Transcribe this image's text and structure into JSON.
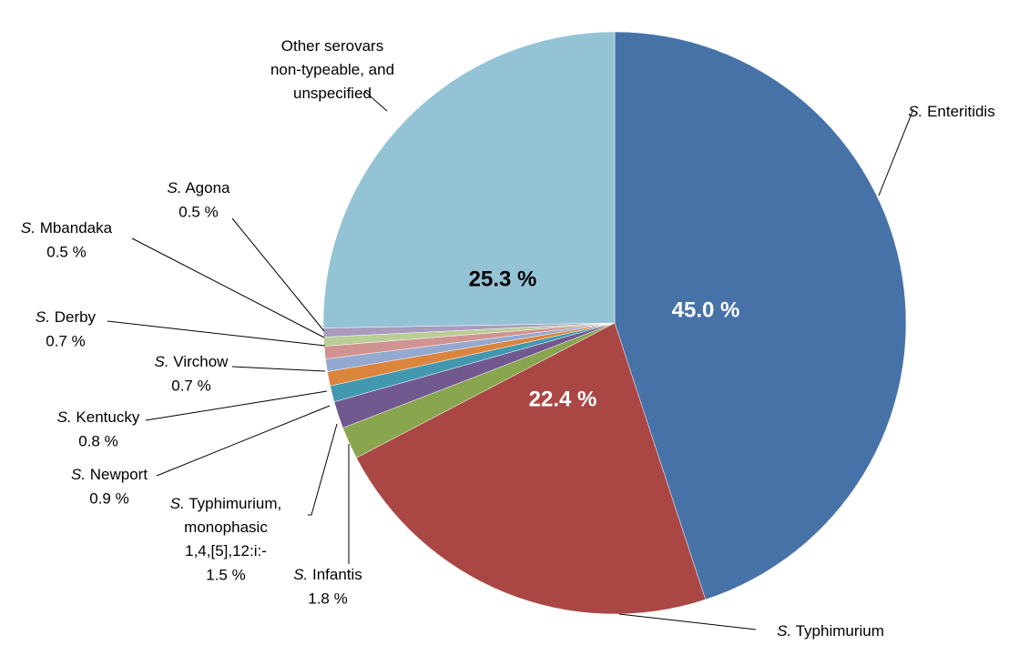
{
  "chart_data": {
    "type": "pie",
    "categories": [
      "S. Enteritidis",
      "S. Typhimurium",
      "S. Infantis",
      "S. Typhimurium, monophasic 1,4,[5],12:i:-",
      "S. Newport",
      "S. Kentucky",
      "S. Virchow",
      "S. Derby",
      "S. Mbandaka",
      "S. Agona",
      "Other serovars non-typeable, and unspecified"
    ],
    "values": [
      45.0,
      22.4,
      1.8,
      1.5,
      0.9,
      0.8,
      0.7,
      0.7,
      0.5,
      0.5,
      25.3
    ],
    "value_labels": [
      "45.0 %",
      "22.4 %",
      "1.8 %",
      "1.5 %",
      "0.9 %",
      "0.8 %",
      "0.7 %",
      "0.7 %",
      "0.5 %",
      "0.5 %",
      "25.3 %"
    ],
    "colors": [
      "#4672a8",
      "#aa4644",
      "#89a54e",
      "#71588f",
      "#4198af",
      "#db843d",
      "#93a9cf",
      "#d19392",
      "#b9cd96",
      "#a99bbd",
      "#93c3d5"
    ]
  }
}
